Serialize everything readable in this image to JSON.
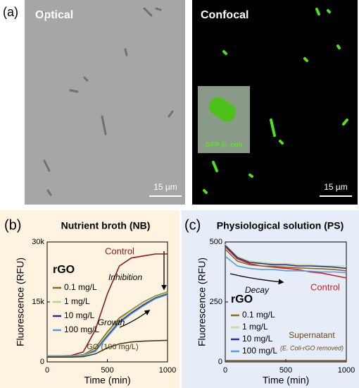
{
  "figure_label": "(a)",
  "images": {
    "optical": {
      "label": "Optical",
      "scale_bar": "15 µm"
    },
    "confocal": {
      "label": "Confocal",
      "scale_bar": "15 µm",
      "inset_label": "GFP E. coli"
    }
  },
  "chart_data": [
    {
      "type": "line",
      "panel_label": "(b)",
      "title": "Nutrient broth (NB)",
      "xlabel": "Time (min)",
      "ylabel": "Fluorescence (RFU)",
      "legend_title": "rGO",
      "x": [
        0,
        100,
        200,
        300,
        400,
        500,
        600,
        700,
        800,
        900,
        1000
      ],
      "xlim": [
        0,
        1000
      ],
      "xticks": [
        0,
        500,
        1000
      ],
      "ylim": [
        0,
        30000
      ],
      "yticks": [
        0,
        {
          "value": 15000,
          "label": "15k"
        },
        {
          "value": 30000,
          "label": "30k"
        }
      ],
      "series": [
        {
          "name": "Control",
          "color": "#8b1a1a",
          "direct_label": true,
          "values": [
            1500,
            1500,
            1600,
            2500,
            8000,
            17000,
            24000,
            26000,
            26500,
            27000,
            27000
          ]
        },
        {
          "name": "0.1 mg/L",
          "color": "#8b6a1a",
          "values": [
            1500,
            1500,
            1500,
            1800,
            3500,
            7500,
            11000,
            13000,
            15000,
            16500,
            17500
          ]
        },
        {
          "name": "1 mg/L",
          "color": "#b5d58a",
          "values": [
            1500,
            1500,
            1500,
            1700,
            3000,
            7000,
            10500,
            12800,
            14800,
            16300,
            17300
          ]
        },
        {
          "name": "10 mg/L",
          "color": "#2e2a8e",
          "values": [
            1400,
            1400,
            1400,
            1600,
            2800,
            6500,
            10000,
            12300,
            14300,
            16000,
            17000
          ]
        },
        {
          "name": "100 mg/L",
          "color": "#5b9bd5",
          "values": [
            1400,
            1400,
            1400,
            1600,
            2600,
            6200,
            9700,
            12000,
            14000,
            15800,
            16800
          ]
        },
        {
          "name": "GO (100 mg/L)",
          "color": "#4a3a14",
          "direct_label": true,
          "values": [
            1200,
            1200,
            1200,
            1300,
            2000,
            3500,
            4500,
            5000,
            5200,
            5300,
            5400
          ]
        }
      ],
      "annotations": [
        "Inhibition",
        "Growth"
      ]
    },
    {
      "type": "line",
      "panel_label": "(c)",
      "title": "Physiological solution (PS)",
      "xlabel": "Time (min)",
      "ylabel": "Fluorescence (RFU)",
      "legend_title": "rGO",
      "x": [
        0,
        100,
        200,
        300,
        400,
        500,
        600,
        700,
        800,
        900,
        1000
      ],
      "xlim": [
        0,
        1000
      ],
      "xticks": [
        0,
        500,
        1000
      ],
      "ylim": [
        0,
        500
      ],
      "yticks": [
        0,
        250,
        500
      ],
      "series": [
        {
          "name": "Control",
          "color": "#d02020",
          "direct_label": true,
          "values": [
            480,
            430,
            410,
            400,
            395,
            390,
            385,
            375,
            370,
            360,
            350
          ]
        },
        {
          "name": "0.1 mg/L",
          "color": "#8b6a1a",
          "values": [
            470,
            420,
            405,
            400,
            398,
            395,
            392,
            390,
            388,
            385,
            380
          ]
        },
        {
          "name": "1 mg/L",
          "color": "#c4dd8a",
          "values": [
            490,
            440,
            420,
            415,
            410,
            410,
            405,
            405,
            400,
            400,
            400
          ]
        },
        {
          "name": "10 mg/L",
          "color": "#2e2a8e",
          "values": [
            485,
            435,
            415,
            410,
            405,
            405,
            400,
            400,
            398,
            395,
            390
          ]
        },
        {
          "name": "100 mg/L",
          "color": "#5b9bd5",
          "values": [
            440,
            400,
            390,
            385,
            385,
            380,
            380,
            378,
            375,
            375,
            372
          ]
        },
        {
          "name": "Supernatant",
          "color": "#6b4a12",
          "direct_label": true,
          "values": [
            5,
            5,
            5,
            5,
            5,
            5,
            5,
            5,
            5,
            5,
            5
          ]
        }
      ],
      "annotations": [
        "Decay",
        "(E. Coli-rGO removed)"
      ]
    }
  ]
}
